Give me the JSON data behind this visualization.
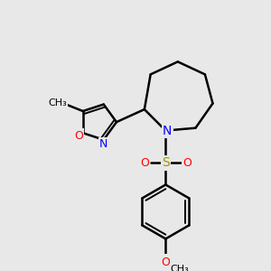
{
  "bg_color": "#e8e8e8",
  "bond_color": "#000000",
  "bond_lw": 1.8,
  "atom_colors": {
    "N": "#0000ff",
    "O": "#ff0000",
    "S": "#999900"
  },
  "font_size": 9,
  "font_size_small": 8
}
